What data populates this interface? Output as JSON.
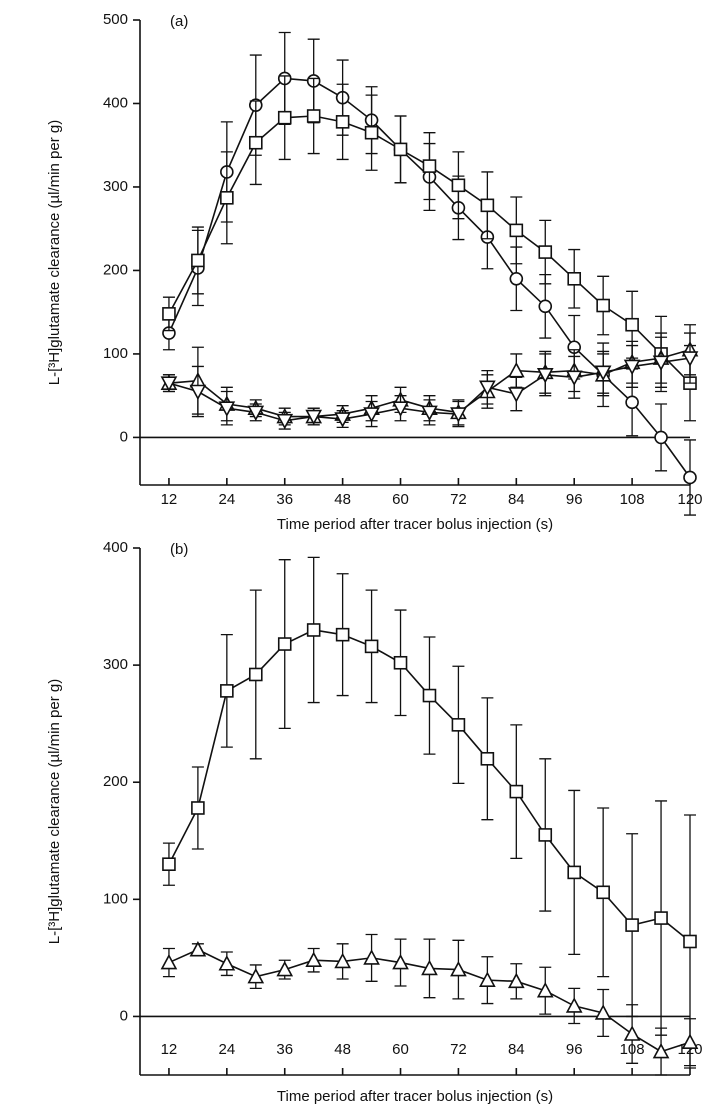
{
  "chart_data": [
    {
      "type": "line",
      "title": "(a)",
      "ylabel": "L-[³H]glutamate clearance  (µl/min per g)",
      "xlabel": "Time period after tracer bolus injection (s)",
      "x": [
        12,
        18,
        24,
        30,
        36,
        42,
        48,
        54,
        60,
        66,
        72,
        78,
        84,
        90,
        96,
        102,
        108,
        114,
        120
      ],
      "xlim": [
        6,
        120
      ],
      "xticks": [
        12,
        24,
        36,
        48,
        60,
        72,
        84,
        96,
        108,
        120
      ],
      "ylim": [
        -57,
        500
      ],
      "yticks": [
        0,
        100,
        200,
        300,
        400,
        500
      ],
      "series": [
        {
          "marker": "circle",
          "color": "#111111",
          "values": [
            125,
            203,
            318,
            398,
            430,
            427,
            407,
            380,
            345,
            312,
            275,
            240,
            190,
            157,
            108,
            75,
            42,
            0,
            -48
          ],
          "errors": [
            20,
            45,
            60,
            60,
            55,
            50,
            45,
            40,
            40,
            40,
            38,
            38,
            38,
            38,
            38,
            38,
            40,
            40,
            45
          ]
        },
        {
          "marker": "square",
          "color": "#111111",
          "values": [
            148,
            212,
            287,
            353,
            383,
            385,
            378,
            365,
            345,
            325,
            302,
            278,
            248,
            222,
            190,
            158,
            135,
            100,
            65
          ],
          "errors": [
            20,
            40,
            55,
            50,
            50,
            45,
            45,
            45,
            40,
            40,
            40,
            40,
            40,
            38,
            35,
            35,
            40,
            45,
            45
          ]
        },
        {
          "marker": "triangle-up",
          "color": "#111111",
          "values": [
            65,
            68,
            40,
            35,
            25,
            25,
            28,
            35,
            45,
            35,
            30,
            55,
            80,
            78,
            80,
            75,
            90,
            95,
            105
          ],
          "errors": [
            10,
            40,
            20,
            10,
            10,
            10,
            10,
            15,
            15,
            15,
            15,
            20,
            20,
            25,
            25,
            25,
            25,
            30,
            30
          ]
        },
        {
          "marker": "triangle-down",
          "color": "#111111",
          "values": [
            65,
            55,
            35,
            30,
            20,
            25,
            22,
            28,
            35,
            30,
            28,
            60,
            52,
            75,
            72,
            78,
            85,
            90,
            95
          ],
          "errors": [
            10,
            30,
            20,
            10,
            10,
            10,
            10,
            15,
            15,
            15,
            15,
            20,
            20,
            25,
            25,
            25,
            25,
            30,
            30
          ]
        }
      ]
    },
    {
      "type": "line",
      "title": "(b)",
      "ylabel": "L-[³H]glutamate clearance  (µl/min per g)",
      "xlabel": "Time period after tracer bolus injection (s)",
      "x": [
        12,
        18,
        24,
        30,
        36,
        42,
        48,
        54,
        60,
        66,
        72,
        78,
        84,
        90,
        96,
        102,
        108,
        114,
        120
      ],
      "xlim": [
        6,
        120
      ],
      "xticks": [
        12,
        24,
        36,
        48,
        60,
        72,
        84,
        96,
        108,
        120
      ],
      "ylim": [
        -50,
        400
      ],
      "yticks": [
        0,
        100,
        200,
        300,
        400
      ],
      "series": [
        {
          "marker": "square",
          "color": "#111111",
          "values": [
            130,
            178,
            278,
            292,
            318,
            330,
            326,
            316,
            302,
            274,
            249,
            220,
            192,
            155,
            123,
            106,
            78,
            84,
            64
          ],
          "errors": [
            18,
            35,
            48,
            72,
            72,
            62,
            52,
            48,
            45,
            50,
            50,
            52,
            57,
            65,
            70,
            72,
            78,
            100,
            108
          ]
        },
        {
          "marker": "triangle-up",
          "color": "#111111",
          "values": [
            46,
            57,
            45,
            34,
            40,
            48,
            47,
            50,
            46,
            41,
            40,
            31,
            30,
            22,
            9,
            3,
            -15,
            -30,
            -22
          ],
          "errors": [
            12,
            5,
            10,
            10,
            8,
            10,
            15,
            20,
            20,
            25,
            25,
            20,
            15,
            20,
            15,
            20,
            25,
            20,
            20
          ]
        }
      ]
    }
  ]
}
